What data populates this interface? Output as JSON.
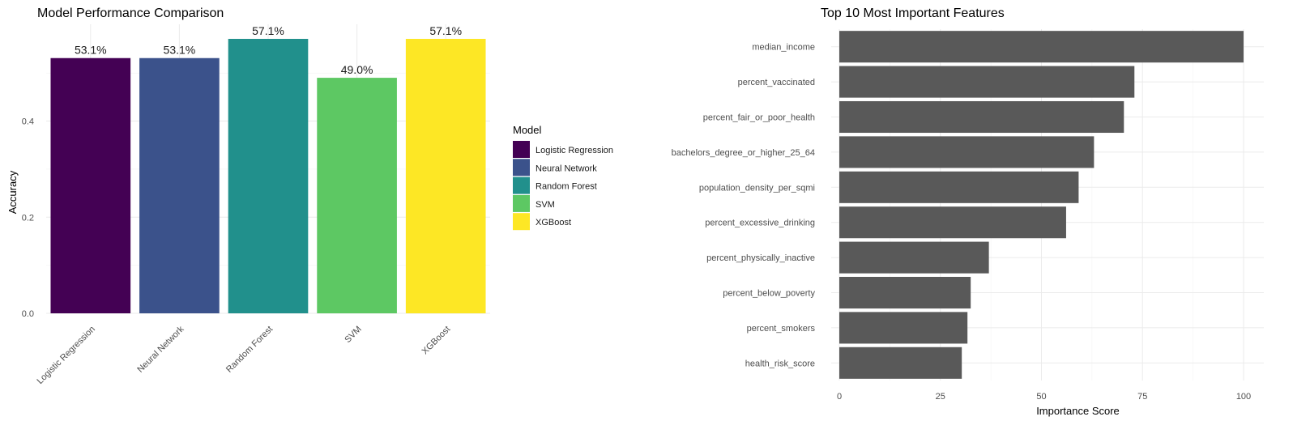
{
  "chart_data": [
    {
      "type": "bar",
      "title": "Model Performance Comparison",
      "xlabel": "",
      "ylabel": "Accuracy",
      "categories": [
        "Logistic Regression",
        "Neural Network",
        "Random Forest",
        "SVM",
        "XGBoost"
      ],
      "values": [
        0.531,
        0.531,
        0.571,
        0.49,
        0.571
      ],
      "data_labels": [
        "53.1%",
        "53.1%",
        "57.1%",
        "49.0%",
        "57.1%"
      ],
      "colors": [
        "#440154",
        "#3B528B",
        "#21908C",
        "#5DC863",
        "#FDE725"
      ],
      "ylim": [
        0,
        0.571
      ],
      "yticks": [
        0.0,
        0.2,
        0.4
      ],
      "ytick_labels": [
        "0.0",
        "0.2",
        "0.4"
      ],
      "grid": true,
      "legend": {
        "title": "Model",
        "position": "right",
        "entries": [
          "Logistic Regression",
          "Neural Network",
          "Random Forest",
          "SVM",
          "XGBoost"
        ]
      }
    },
    {
      "type": "bar",
      "orientation": "horizontal",
      "title": "Top 10 Most Important Features",
      "xlabel": "Importance Score",
      "ylabel": "",
      "categories": [
        "median_income",
        "percent_vaccinated",
        "percent_fair_or_poor_health",
        "bachelors_degree_or_higher_25_64",
        "population_density_per_sqmi",
        "percent_excessive_drinking",
        "percent_physically_inactive",
        "percent_below_poverty",
        "percent_smokers",
        "health_risk_score"
      ],
      "values": [
        100,
        73,
        70.4,
        63,
        59.2,
        56.1,
        37,
        32.5,
        31.7,
        30.3
      ],
      "color": "#595959",
      "xlim": [
        0,
        100
      ],
      "xticks": [
        0,
        25,
        50,
        75,
        100
      ],
      "grid": true
    }
  ]
}
